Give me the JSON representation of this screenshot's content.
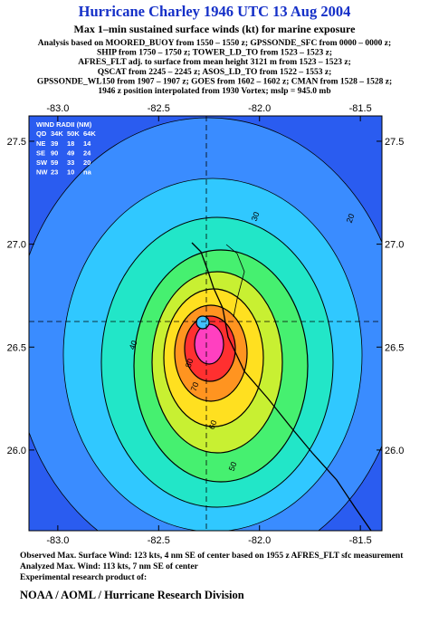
{
  "header": {
    "title": "Hurricane Charley 1946 UTC 13 Aug 2004",
    "subtitle": "Max 1–min sustained surface winds (kt) for marine exposure",
    "analysis": [
      "Analysis based on  MOORED_BUOY from 1550 – 1550 z;  GPSSONDE_SFC from 0000 – 0000 z;",
      "SHIP from 1750 – 1750 z;  TOWER_LD_TO from 1523 – 1523 z;",
      "AFRES_FLT adj. to surface from mean height 3121 m from 1523 – 1523 z;",
      "QSCAT from 2245 – 2245 z;  ASOS_LD_TO from 1522 – 1553 z;",
      "GPSSONDE_WL150 from 1907 – 1907 z;  GOES from 1602 – 1602 z;  CMAN from 1528 – 1528 z;",
      "1946 z position interpolated from 1930 Vortex; mslp = 945.0 mb"
    ]
  },
  "map": {
    "xlim": [
      -83.143,
      -81.393
    ],
    "ylim": [
      25.608,
      27.623
    ],
    "xticks": [
      {
        "value": -83,
        "label": "-83.0"
      },
      {
        "value": -82.5,
        "label": "-82.5"
      },
      {
        "value": -82,
        "label": "-82.0"
      },
      {
        "value": -81.5,
        "label": "-81.5"
      }
    ],
    "yticks": [
      {
        "value": 27.5,
        "label": "27.5"
      },
      {
        "value": 27,
        "label": "27.0"
      },
      {
        "value": 26.5,
        "label": "26.5"
      },
      {
        "value": 26,
        "label": "26.0"
      }
    ],
    "contour_labels": [
      20,
      30,
      40,
      50,
      60,
      70,
      80
    ]
  },
  "wind_radii": {
    "title": "WIND RADII (NM)",
    "columns": [
      "QD",
      "34K",
      "50K",
      "64K"
    ],
    "rows": [
      [
        "NE",
        "39",
        "18",
        "14"
      ],
      [
        "SE",
        "90",
        "49",
        "24"
      ],
      [
        "SW",
        "59",
        "33",
        "20"
      ],
      [
        "NW",
        "23",
        "10",
        "na"
      ]
    ]
  },
  "footer": {
    "observed": "Observed Max. Surface Wind: 123 kts, 4 nm SE of center based on 1955 z AFRES_FLT sfc measurement",
    "analyzed": "Analyzed Max. Wind: 113 kts, 7 nm SE of center",
    "product": "Experimental research product of:",
    "org": "NOAA / AOML / Hurricane Research Division"
  }
}
